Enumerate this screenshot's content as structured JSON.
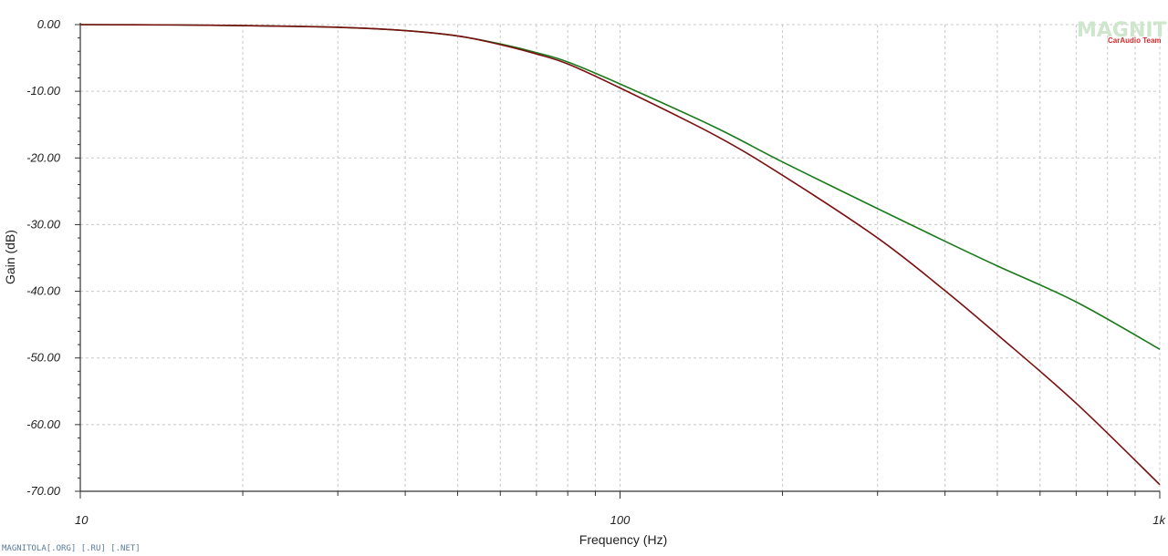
{
  "chart_data": {
    "type": "line",
    "title": "",
    "xlabel": "Frequency (Hz)",
    "ylabel": "Gain (dB)",
    "x_scale": "log",
    "xlim": [
      10,
      1000
    ],
    "ylim": [
      -70,
      0
    ],
    "grid": true,
    "x_ticks": [
      {
        "value": 10,
        "label": "10"
      },
      {
        "value": 100,
        "label": "100"
      },
      {
        "value": 1000,
        "label": "1k"
      }
    ],
    "y_ticks": [
      {
        "value": 0,
        "label": "0.00"
      },
      {
        "value": -10,
        "label": "-10.00"
      },
      {
        "value": -20,
        "label": "-20.00"
      },
      {
        "value": -30,
        "label": "-30.00"
      },
      {
        "value": -40,
        "label": "-40.00"
      },
      {
        "value": -50,
        "label": "-50.00"
      },
      {
        "value": -60,
        "label": "-60.00"
      },
      {
        "value": -70,
        "label": "-70.00"
      }
    ],
    "series": [
      {
        "color": "#1a7a1a",
        "x": [
          10,
          15,
          20,
          30,
          40,
          50,
          60,
          70,
          80,
          100,
          150,
          200,
          300,
          400,
          500,
          700,
          1000
        ],
        "y": [
          0,
          -0.05,
          -0.15,
          -0.4,
          -0.9,
          -1.7,
          -2.9,
          -4.2,
          -5.6,
          -8.9,
          -15.4,
          -20.6,
          -27.6,
          -32.5,
          -36.2,
          -41.6,
          -48.7
        ]
      },
      {
        "color": "#7a1010",
        "x": [
          10,
          15,
          20,
          30,
          40,
          50,
          60,
          70,
          80,
          100,
          150,
          200,
          300,
          400,
          500,
          700,
          1000
        ],
        "y": [
          0,
          -0.05,
          -0.15,
          -0.4,
          -0.9,
          -1.7,
          -3.0,
          -4.4,
          -5.9,
          -9.5,
          -16.6,
          -22.6,
          -32.0,
          -39.9,
          -46.5,
          -56.8,
          -69.0
        ]
      }
    ]
  },
  "watermark": {
    "footer_text": "MAGNITOLA[.ORG] [.RU] [.NET]",
    "logo_text": "MAGNITOLA",
    "logo_subtext": "CarAudio Team"
  },
  "colors": {
    "grid": "#c8c8c8",
    "axis": "#333333"
  }
}
